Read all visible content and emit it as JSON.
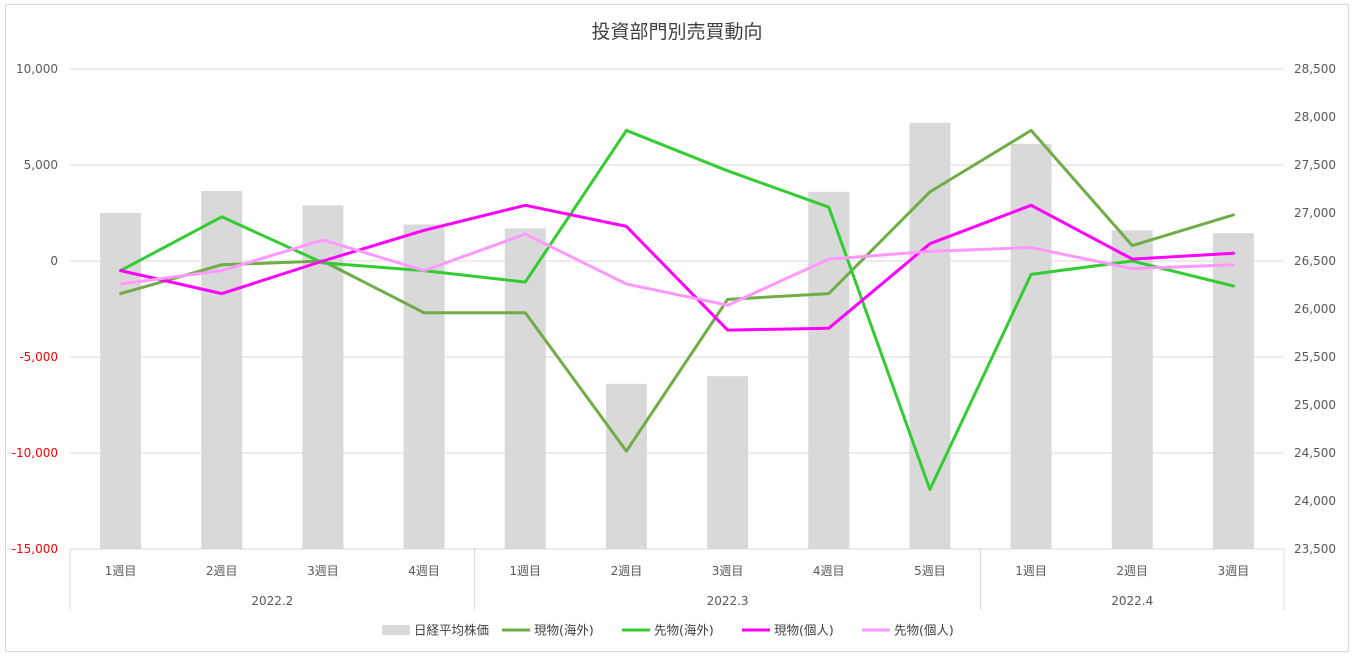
{
  "chart_data": {
    "type": "bar+line",
    "title": "投資部門別売買動向",
    "groups": [
      {
        "label": "2022.2",
        "weeks": [
          "1週目",
          "2週目",
          "3週目",
          "4週目"
        ]
      },
      {
        "label": "2022.3",
        "weeks": [
          "1週目",
          "2週目",
          "3週目",
          "4週目",
          "5週目"
        ]
      },
      {
        "label": "2022.4",
        "weeks": [
          "1週目",
          "2週目",
          "3週目"
        ]
      }
    ],
    "left_axis": {
      "ylim": [
        -15000,
        10000
      ],
      "ticks": [
        10000,
        5000,
        0,
        -5000,
        -10000,
        -15000
      ],
      "tick_labels": [
        "10,000",
        "5,000",
        "0",
        "-5,000",
        "-10,000",
        "-15,000"
      ],
      "negative_color": "#ff0000"
    },
    "right_axis": {
      "ylim": [
        23500,
        28500
      ],
      "ticks": [
        28500,
        28000,
        27500,
        27000,
        26500,
        26000,
        25500,
        25000,
        24500,
        24000,
        23500
      ],
      "tick_labels": [
        "28,500",
        "28,000",
        "27,500",
        "27,000",
        "26,500",
        "26,000",
        "25,500",
        "25,000",
        "24,500",
        "24,000",
        "23,500"
      ]
    },
    "bar_series": {
      "name": "日経平均株価",
      "axis": "right",
      "color": "#d9d9d9",
      "values": [
        27000,
        27230,
        27080,
        26880,
        26840,
        25220,
        25300,
        27220,
        27940,
        27720,
        26820,
        26790
      ]
    },
    "line_series": [
      {
        "name": "現物(海外)",
        "axis": "left",
        "color": "#70ad47",
        "values": [
          -1700,
          -200,
          0,
          -2700,
          -2700,
          -9900,
          -2000,
          -1700,
          3600,
          6800,
          800,
          2400
        ]
      },
      {
        "name": "先物(海外)",
        "axis": "left",
        "color": "#33cc33",
        "values": [
          -500,
          2300,
          -100,
          -500,
          -1100,
          6800,
          4700,
          2800,
          -11900,
          -700,
          0,
          -1300
        ]
      },
      {
        "name": "現物(個人)",
        "axis": "left",
        "color": "#ff00ff",
        "values": [
          -500,
          -1700,
          0,
          1600,
          2900,
          1800,
          -3600,
          -3500,
          900,
          2900,
          100,
          400
        ]
      },
      {
        "name": "先物(個人)",
        "axis": "left",
        "color": "#ff99ff",
        "values": [
          -1200,
          -500,
          1100,
          -500,
          1400,
          -1200,
          -2300,
          100,
          500,
          700,
          -400,
          -200
        ]
      }
    ],
    "grid": true,
    "legend_position": "bottom"
  }
}
